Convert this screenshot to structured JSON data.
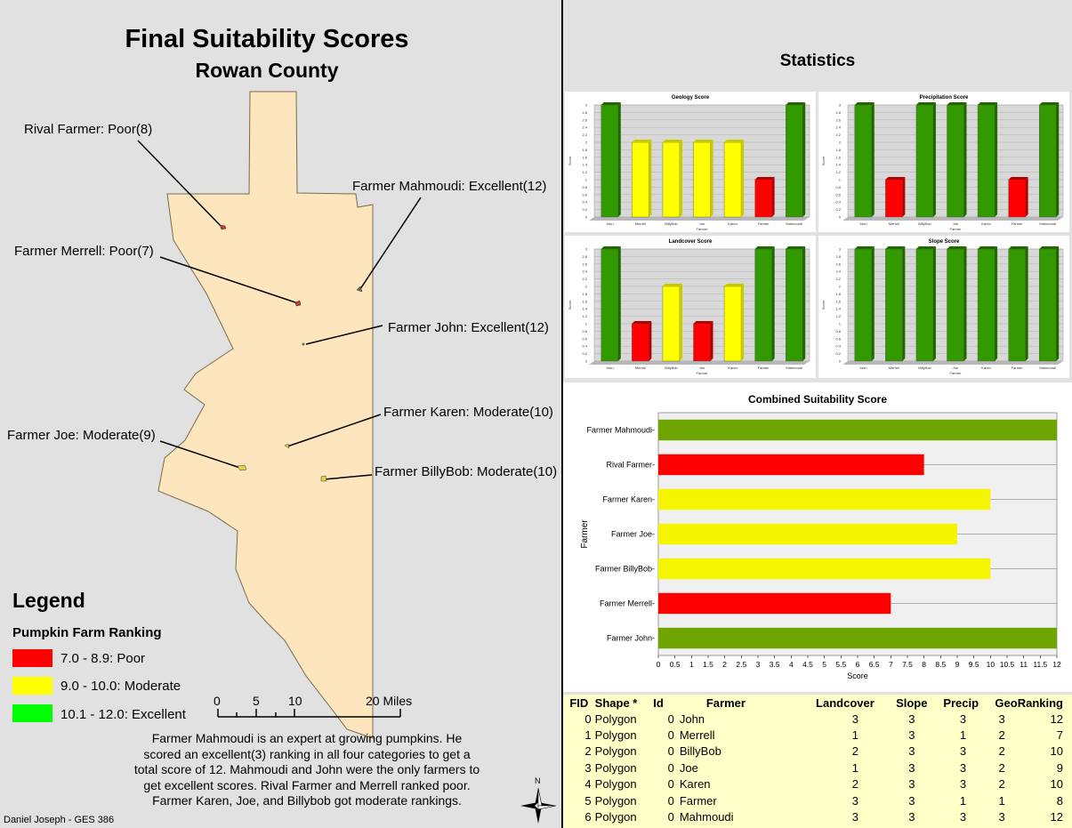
{
  "map": {
    "title": "Final Suitability Scores",
    "subtitle": "Rowan County",
    "farm_labels": {
      "rival": "Rival Farmer: Poor(8)",
      "mahmoudi": "Farmer Mahmoudi: Excellent(12)",
      "merrell": "Farmer Merrell: Poor(7)",
      "john": "Farmer John: Excellent(12)",
      "karen": "Farmer Karen: Moderate(10)",
      "joe": "Farmer Joe: Moderate(9)",
      "billybob": "Farmer BillyBob: Moderate(10)"
    },
    "legend": {
      "title": "Legend",
      "subtitle": "Pumpkin Farm Ranking",
      "items": [
        {
          "label": "7.0 - 8.9: Poor",
          "color": "#ff0000"
        },
        {
          "label": "9.0 - 10.0: Moderate",
          "color": "#ffff00"
        },
        {
          "label": "10.1 - 12.0: Excellent",
          "color": "#00ff00"
        }
      ]
    },
    "scalebar": {
      "ticks": [
        "0",
        "5",
        "10",
        "20 Miles"
      ]
    },
    "description": "Farmer Mahmoudi is an expert at growing pumpkins. He scored an excellent(3) ranking in all four categories to get a total score of 12. Mahmoudi and John were the only farmers to get excellent scores. Rival Farmer and Merrell ranked poor. Farmer Karen, Joe, and Billybob got moderate rankings.",
    "north_label": "N",
    "author": "Daniel Joseph - GES 386",
    "colors": {
      "county_fill": "#fde6bd",
      "poor": "#cc3333",
      "moderate": "#e8d14a",
      "excellent": "#557744"
    }
  },
  "statistics": {
    "title": "Statistics"
  },
  "chart_data": [
    {
      "type": "bar",
      "title": "Geology Score",
      "xlabel": "Farmer",
      "ylabel": "Score",
      "categories": [
        "John",
        "Merrell",
        "BillyBob",
        "Joe",
        "Karen",
        "Farmer",
        "Mahmoudi"
      ],
      "values": [
        3,
        2,
        2,
        2,
        2,
        1,
        3
      ],
      "ylim": [
        0,
        3
      ]
    },
    {
      "type": "bar",
      "title": "Precipitation Score",
      "xlabel": "Farmer",
      "ylabel": "Score",
      "categories": [
        "John",
        "Merrell",
        "BillyBob",
        "Joe",
        "Karen",
        "Farmer",
        "Mahmoudi"
      ],
      "values": [
        3,
        1,
        3,
        3,
        3,
        1,
        3
      ],
      "ylim": [
        0,
        3
      ]
    },
    {
      "type": "bar",
      "title": "Landcover Score",
      "xlabel": "Farmer",
      "ylabel": "Score",
      "categories": [
        "John",
        "Merrell",
        "BillyBob",
        "Joe",
        "Karen",
        "Farmer",
        "Mahmoudi"
      ],
      "values": [
        3,
        1,
        2,
        1,
        2,
        3,
        3
      ],
      "ylim": [
        0,
        3
      ]
    },
    {
      "type": "bar",
      "title": "Slope Score",
      "xlabel": "Farmer",
      "ylabel": "Score",
      "categories": [
        "John",
        "Merrell",
        "BillyBob",
        "Joe",
        "Karen",
        "Farmer",
        "Mahmoudi"
      ],
      "values": [
        3,
        3,
        3,
        3,
        3,
        3,
        3
      ],
      "ylim": [
        0,
        3
      ]
    },
    {
      "type": "bar",
      "orientation": "horizontal",
      "title": "Combined Suitability Score",
      "xlabel": "Score",
      "ylabel": "Farmer",
      "categories": [
        "Farmer Mahmoudi",
        "Rival Farmer",
        "Farmer Karen",
        "Farmer Joe",
        "Farmer BillyBob",
        "Farmer Merrell",
        "Farmer John"
      ],
      "values": [
        12,
        8,
        10,
        9,
        10,
        7,
        12
      ],
      "xlim": [
        0,
        12
      ],
      "xticks": [
        "0",
        "0.5",
        "1",
        "1.5",
        "2",
        "2.5",
        "3",
        "3.5",
        "4",
        "4.5",
        "5",
        "5.5",
        "6",
        "6.5",
        "7",
        "7.5",
        "8",
        "8.5",
        "9",
        "9.5",
        "10",
        "10.5",
        "11",
        "11.5",
        "12"
      ],
      "grid": true
    }
  ],
  "table": {
    "headers": [
      "FID",
      "Shape *",
      "Id",
      "Farmer",
      "Landcover",
      "Slope",
      "Precip",
      "Geo",
      "Ranking"
    ],
    "rows": [
      [
        "0",
        "Polygon",
        "0",
        "John",
        "3",
        "3",
        "3",
        "3",
        "12"
      ],
      [
        "1",
        "Polygon",
        "0",
        "Merrell",
        "1",
        "3",
        "1",
        "2",
        "7"
      ],
      [
        "2",
        "Polygon",
        "0",
        "BillyBob",
        "2",
        "3",
        "3",
        "2",
        "10"
      ],
      [
        "3",
        "Polygon",
        "0",
        "Joe",
        "1",
        "3",
        "3",
        "2",
        "9"
      ],
      [
        "4",
        "Polygon",
        "0",
        "Karen",
        "2",
        "3",
        "3",
        "2",
        "10"
      ],
      [
        "5",
        "Polygon",
        "0",
        "Farmer",
        "3",
        "3",
        "1",
        "1",
        "8"
      ],
      [
        "6",
        "Polygon",
        "0",
        "Mahmoudi",
        "3",
        "3",
        "3",
        "3",
        "12"
      ]
    ]
  }
}
